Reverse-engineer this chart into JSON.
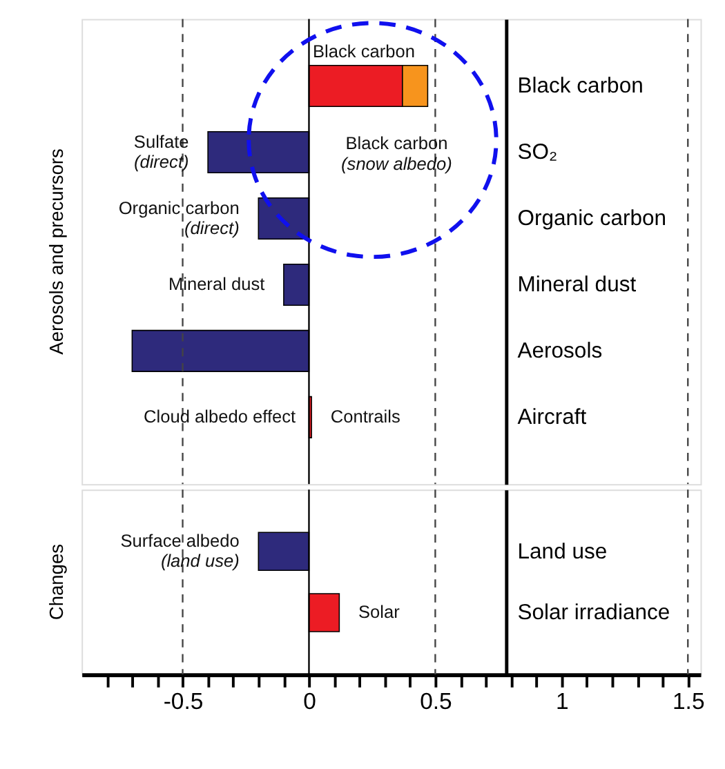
{
  "chart_data": [
    {
      "type": "bar",
      "orientation": "horizontal",
      "stacked": true,
      "ylabel": "Aerosols and precursors",
      "categories": [
        "Black carbon",
        "SO₂",
        "Organic carbon",
        "Mineral dust",
        "Aerosols",
        "Aircraft"
      ],
      "series": [
        {
          "colors": [
            "#ec1c24",
            "#2e2a7c",
            "#2e2a7c",
            "#2e2a7c",
            "#2e2a7c",
            "#ec1c24"
          ],
          "values": [
            0.37,
            -0.4,
            -0.2,
            -0.1,
            -0.7,
            0.01
          ]
        },
        {
          "color": "#f7941d",
          "values": [
            0.1,
            null,
            null,
            null,
            null,
            null
          ]
        }
      ],
      "xlim": [
        -0.9,
        1.55
      ],
      "tick_labels": "y",
      "ref_lines": [
        {
          "axis": "x",
          "value": -0.5,
          "line_style": "dashed",
          "color": "#444444"
        },
        {
          "axis": "x",
          "value": 0,
          "line_style": "solid",
          "color": "#000000"
        },
        {
          "axis": "x",
          "value": 0.5,
          "line_style": "dashed",
          "color": "#444444"
        },
        {
          "axis": "x",
          "value": 1.5,
          "line_style": "dashed",
          "color": "#444444"
        }
      ],
      "annotations": [
        "Black carbon",
        "Black carbon (snow albedo)",
        {
          "text": "Sulfate (direct)",
          "x": -0.4,
          "y": "SO₂"
        },
        {
          "text": "Organic carbon (direct)",
          "x": -0.2,
          "y": "Organic carbon"
        },
        {
          "text": "Mineral dust",
          "x": -0.1,
          "y": "Mineral dust"
        },
        "Cloud albedo effect",
        {
          "text": "Contrails",
          "x": 0.01,
          "y": "Aircraft"
        }
      ]
    },
    {
      "type": "bar",
      "orientation": "horizontal",
      "ylabel": "Changes",
      "categories": [
        "Land use",
        "Solar irradiance"
      ],
      "series": [
        {
          "colors": [
            "#2e2a7c",
            "#ec1c24"
          ],
          "values": [
            -0.2,
            0.12
          ]
        }
      ],
      "xlim": [
        -0.9,
        1.55
      ],
      "xticks": [
        {
          "value": -0.8,
          "label": null
        },
        {
          "value": -0.7,
          "label": null
        },
        {
          "value": -0.6,
          "label": null
        },
        -0.5,
        {
          "value": -0.4,
          "label": null
        },
        {
          "value": -0.3,
          "label": null
        },
        {
          "value": -0.2,
          "label": null
        },
        {
          "value": -0.1,
          "label": null
        },
        0,
        {
          "value": 0.1,
          "label": null
        },
        {
          "value": 0.2,
          "label": null
        },
        {
          "value": 0.3,
          "label": null
        },
        {
          "value": 0.4,
          "label": null
        },
        0.5,
        {
          "value": 0.6,
          "label": null
        },
        {
          "value": 0.7,
          "label": null
        },
        {
          "value": 0.8,
          "label": null
        },
        {
          "value": 0.9,
          "label": null
        },
        1,
        {
          "value": 1.1,
          "label": null
        },
        {
          "value": 1.2,
          "label": null
        },
        {
          "value": 1.3,
          "label": null
        },
        {
          "value": 1.4,
          "label": null
        },
        1.5
      ],
      "ref_lines": [
        {
          "axis": "x",
          "value": -0.5,
          "line_style": "dashed",
          "color": "#444444"
        },
        {
          "axis": "x",
          "value": 0,
          "line_style": "solid",
          "color": "#000000"
        },
        {
          "axis": "x",
          "value": 0.5,
          "line_style": "dashed",
          "color": "#444444"
        },
        {
          "axis": "x",
          "value": 1.5,
          "line_style": "dashed",
          "color": "#444444"
        }
      ],
      "annotations": [
        {
          "text": "Surface albedo (land use)",
          "x": -0.2,
          "y": "Land use"
        },
        {
          "text": "Solar",
          "x": 0.12,
          "y": "Solar irradiance"
        }
      ]
    }
  ]
}
